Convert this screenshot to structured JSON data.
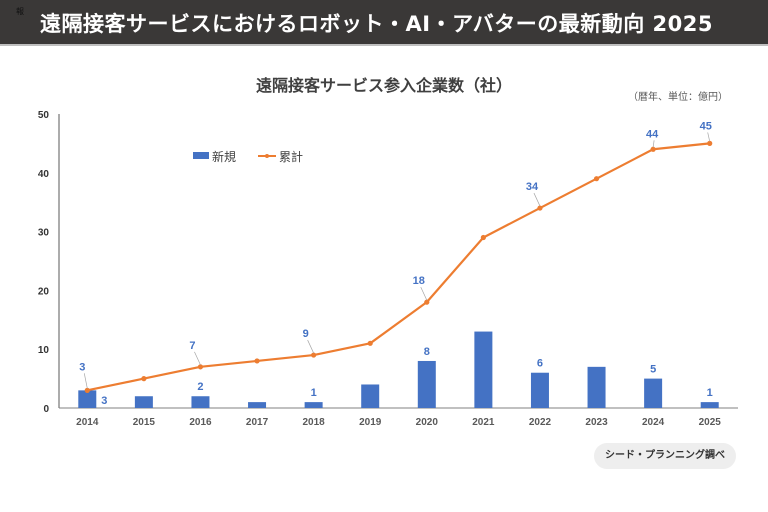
{
  "header": {
    "corner_mark": "報",
    "title": "遠隔接客サービスにおけるロボット・AI・アバターの最新動向 2025"
  },
  "unit_note": "（暦年、単位：億円）",
  "source": "シード・プランニング調べ",
  "colors": {
    "bar": "#4472c4",
    "line": "#ed7d31",
    "label": "#4472c4",
    "header_bg": "#3a3837"
  },
  "chart_data": {
    "type": "bar+line",
    "title": "遠隔接客サービス参入企業数（社）",
    "categories": [
      "2014",
      "2015",
      "2016",
      "2017",
      "2018",
      "2019",
      "2020",
      "2021",
      "2022",
      "2023",
      "2024",
      "2025"
    ],
    "series": [
      {
        "name": "新規",
        "type": "bar",
        "values": [
          3,
          2,
          2,
          1,
          1,
          4,
          8,
          13,
          6,
          7,
          5,
          1
        ],
        "labels": [
          "3",
          null,
          "2",
          null,
          "1",
          null,
          "8",
          null,
          "6",
          null,
          "5",
          "1"
        ]
      },
      {
        "name": "累計",
        "type": "line",
        "values": [
          3,
          5,
          7,
          8,
          9,
          11,
          18,
          29,
          34,
          39,
          44,
          45
        ],
        "labels": [
          "3",
          null,
          "7",
          null,
          "9",
          null,
          "18",
          null,
          "34",
          null,
          "44",
          "45"
        ]
      }
    ],
    "ylim": [
      0,
      50
    ],
    "yticks": [
      0,
      10,
      20,
      30,
      40,
      50
    ],
    "xlabel": "",
    "ylabel": "",
    "grid": false,
    "legend_position": "top-left"
  }
}
